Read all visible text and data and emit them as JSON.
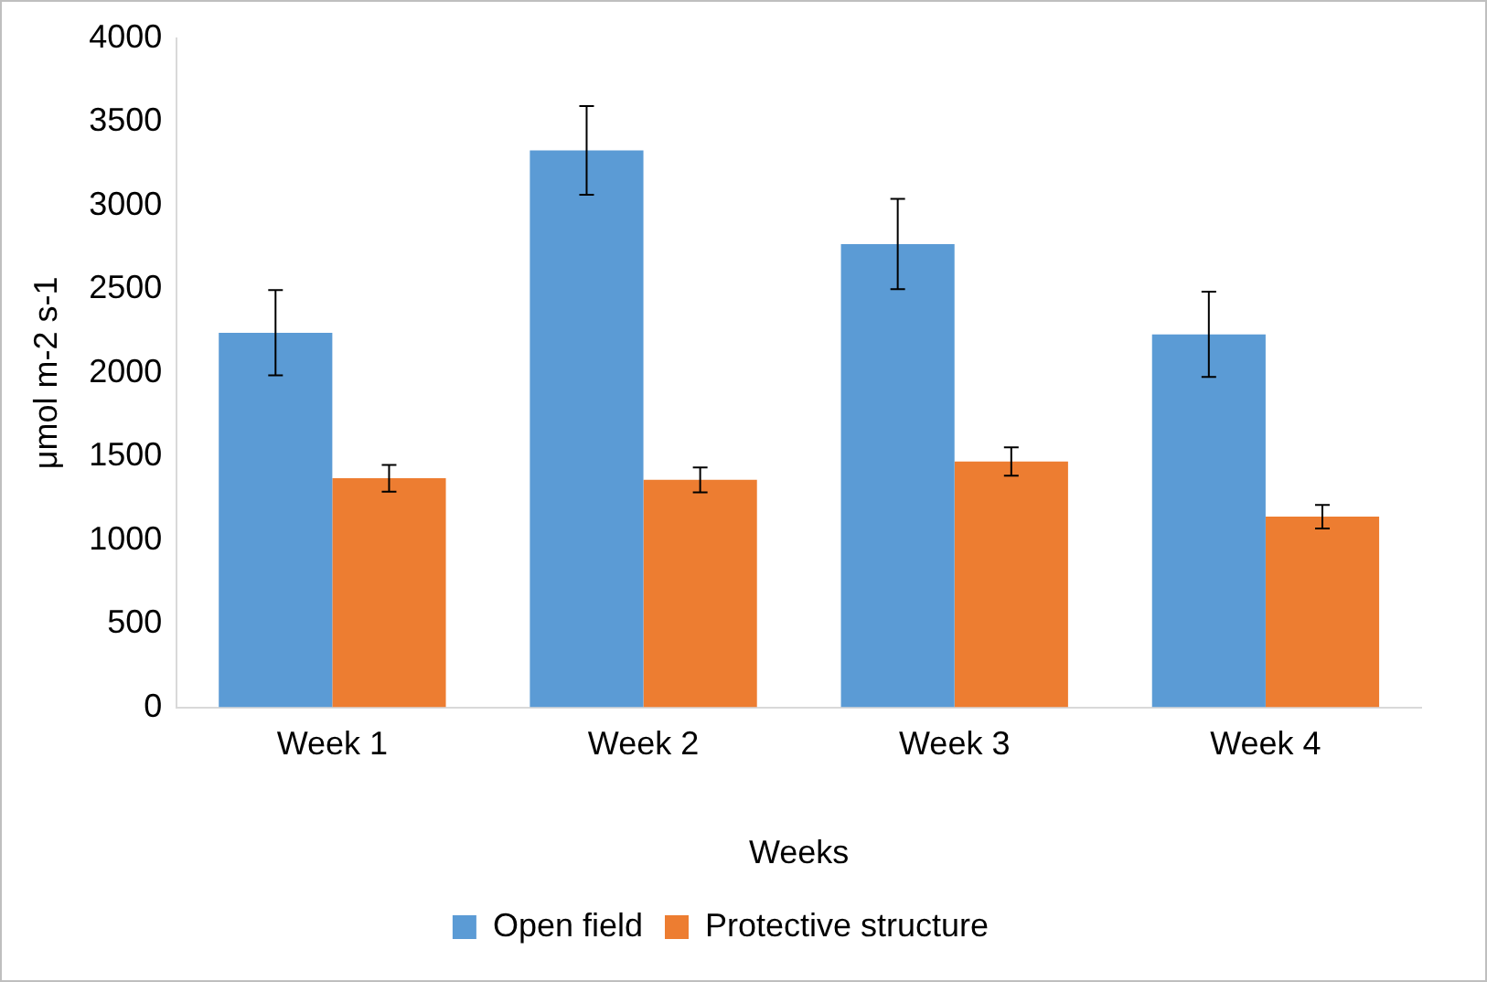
{
  "chart_data": {
    "type": "bar",
    "xlabel": "Weeks",
    "ylabel": "μmol m-2 s-1",
    "categories": [
      "Week 1",
      "Week 2",
      "Week 3",
      "Week 4"
    ],
    "series": [
      {
        "name": "Open field",
        "color": "#5b9bd5",
        "values": [
          2240,
          3330,
          2770,
          2230
        ],
        "errors": [
          255,
          265,
          270,
          255
        ]
      },
      {
        "name": "Protective structure",
        "color": "#ed7d31",
        "values": [
          1370,
          1360,
          1470,
          1140
        ],
        "errors": [
          80,
          75,
          85,
          70
        ]
      }
    ],
    "ylim": [
      0,
      4000
    ],
    "yticks": [
      0,
      500,
      1000,
      1500,
      2000,
      2500,
      3000,
      3500,
      4000
    ],
    "grid": false,
    "legend": "bottom"
  }
}
